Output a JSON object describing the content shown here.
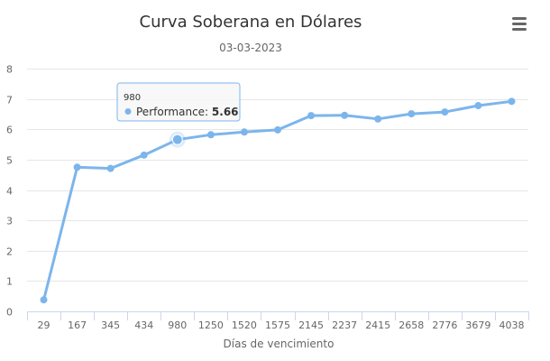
{
  "chart_data": {
    "type": "line",
    "title": "Curva Soberana en Dólares",
    "subtitle": "03-03-2023",
    "xlabel": "Días de vencimiento",
    "ylabel": "",
    "categories": [
      "29",
      "167",
      "345",
      "434",
      "980",
      "1250",
      "1520",
      "1575",
      "2145",
      "2237",
      "2415",
      "2658",
      "2776",
      "3679",
      "4038"
    ],
    "y_ticks": [
      "0",
      "1",
      "2",
      "3",
      "4",
      "5",
      "6",
      "7",
      "8"
    ],
    "ylim": [
      0,
      8
    ],
    "grid": true,
    "legend": "none",
    "series": [
      {
        "name": "Performance",
        "values": [
          0.38,
          4.75,
          4.71,
          5.15,
          5.66,
          5.82,
          5.91,
          5.98,
          6.45,
          6.46,
          6.34,
          6.51,
          6.57,
          6.78,
          6.92
        ],
        "color": "#7cb5ec"
      }
    ],
    "tooltip": {
      "visible": true,
      "category": "980",
      "series_name": "Performance",
      "value": "5.66",
      "point_index": 4
    }
  },
  "colors": {
    "line": "#7cb5ec",
    "grid": "#e6e6e6",
    "axis": "#ccd6eb",
    "text": "#333333",
    "muted": "#666666",
    "tooltip_border": "#7cb5ec",
    "menu_icon": "#666666"
  },
  "menu": {
    "icon": "hamburger-menu-icon"
  }
}
